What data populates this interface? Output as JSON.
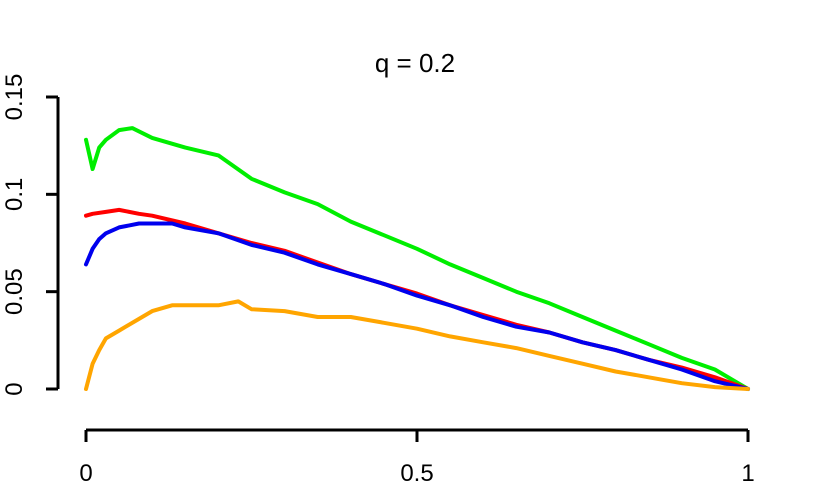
{
  "chart_data": {
    "type": "line",
    "title": "q = 0.2",
    "xlabel": "",
    "ylabel": "",
    "xlim": [
      0,
      1
    ],
    "ylim": [
      0,
      0.15
    ],
    "x_ticks": [
      {
        "value": 0,
        "label": "0"
      },
      {
        "value": 0.5,
        "label": "0.5"
      },
      {
        "value": 1,
        "label": "1"
      }
    ],
    "y_ticks": [
      {
        "value": 0,
        "label": "0"
      },
      {
        "value": 0.05,
        "label": "0.05"
      },
      {
        "value": 0.1,
        "label": "0.1"
      },
      {
        "value": 0.15,
        "label": "0.15"
      }
    ],
    "grid": false,
    "legend": "none",
    "series": [
      {
        "color": "#00ee00",
        "x": [
          0.0,
          0.01,
          0.02,
          0.03,
          0.05,
          0.07,
          0.1,
          0.15,
          0.2,
          0.25,
          0.3,
          0.35,
          0.4,
          0.45,
          0.5,
          0.55,
          0.6,
          0.65,
          0.7,
          0.75,
          0.8,
          0.85,
          0.9,
          0.95,
          1.0
        ],
        "values": [
          0.128,
          0.113,
          0.124,
          0.128,
          0.133,
          0.134,
          0.129,
          0.124,
          0.12,
          0.108,
          0.101,
          0.095,
          0.086,
          0.079,
          0.072,
          0.064,
          0.057,
          0.05,
          0.044,
          0.037,
          0.03,
          0.023,
          0.016,
          0.01,
          0.0
        ]
      },
      {
        "color": "#ff0000",
        "x": [
          0.0,
          0.01,
          0.03,
          0.05,
          0.08,
          0.1,
          0.15,
          0.2,
          0.25,
          0.3,
          0.35,
          0.4,
          0.45,
          0.5,
          0.55,
          0.6,
          0.65,
          0.7,
          0.75,
          0.8,
          0.85,
          0.9,
          0.95,
          1.0
        ],
        "values": [
          0.089,
          0.09,
          0.091,
          0.092,
          0.09,
          0.089,
          0.085,
          0.08,
          0.075,
          0.071,
          0.065,
          0.059,
          0.054,
          0.049,
          0.043,
          0.038,
          0.033,
          0.029,
          0.024,
          0.02,
          0.015,
          0.011,
          0.006,
          0.0
        ]
      },
      {
        "color": "#0000ee",
        "x": [
          0.0,
          0.01,
          0.02,
          0.03,
          0.05,
          0.08,
          0.1,
          0.13,
          0.15,
          0.2,
          0.25,
          0.3,
          0.35,
          0.4,
          0.45,
          0.5,
          0.55,
          0.6,
          0.65,
          0.7,
          0.75,
          0.8,
          0.85,
          0.9,
          0.95,
          1.0
        ],
        "values": [
          0.064,
          0.072,
          0.077,
          0.08,
          0.083,
          0.085,
          0.085,
          0.085,
          0.083,
          0.08,
          0.074,
          0.07,
          0.064,
          0.059,
          0.054,
          0.048,
          0.043,
          0.037,
          0.032,
          0.029,
          0.024,
          0.02,
          0.015,
          0.01,
          0.004,
          0.0
        ]
      },
      {
        "color": "#ffa500",
        "x": [
          0.0,
          0.01,
          0.02,
          0.03,
          0.05,
          0.08,
          0.1,
          0.13,
          0.15,
          0.2,
          0.23,
          0.25,
          0.3,
          0.35,
          0.4,
          0.45,
          0.5,
          0.55,
          0.6,
          0.65,
          0.7,
          0.75,
          0.8,
          0.85,
          0.9,
          0.95,
          1.0
        ],
        "values": [
          0.0,
          0.013,
          0.02,
          0.026,
          0.03,
          0.036,
          0.04,
          0.043,
          0.043,
          0.043,
          0.045,
          0.041,
          0.04,
          0.037,
          0.037,
          0.034,
          0.031,
          0.027,
          0.024,
          0.021,
          0.017,
          0.013,
          0.009,
          0.006,
          0.003,
          0.001,
          0.0
        ]
      }
    ]
  }
}
